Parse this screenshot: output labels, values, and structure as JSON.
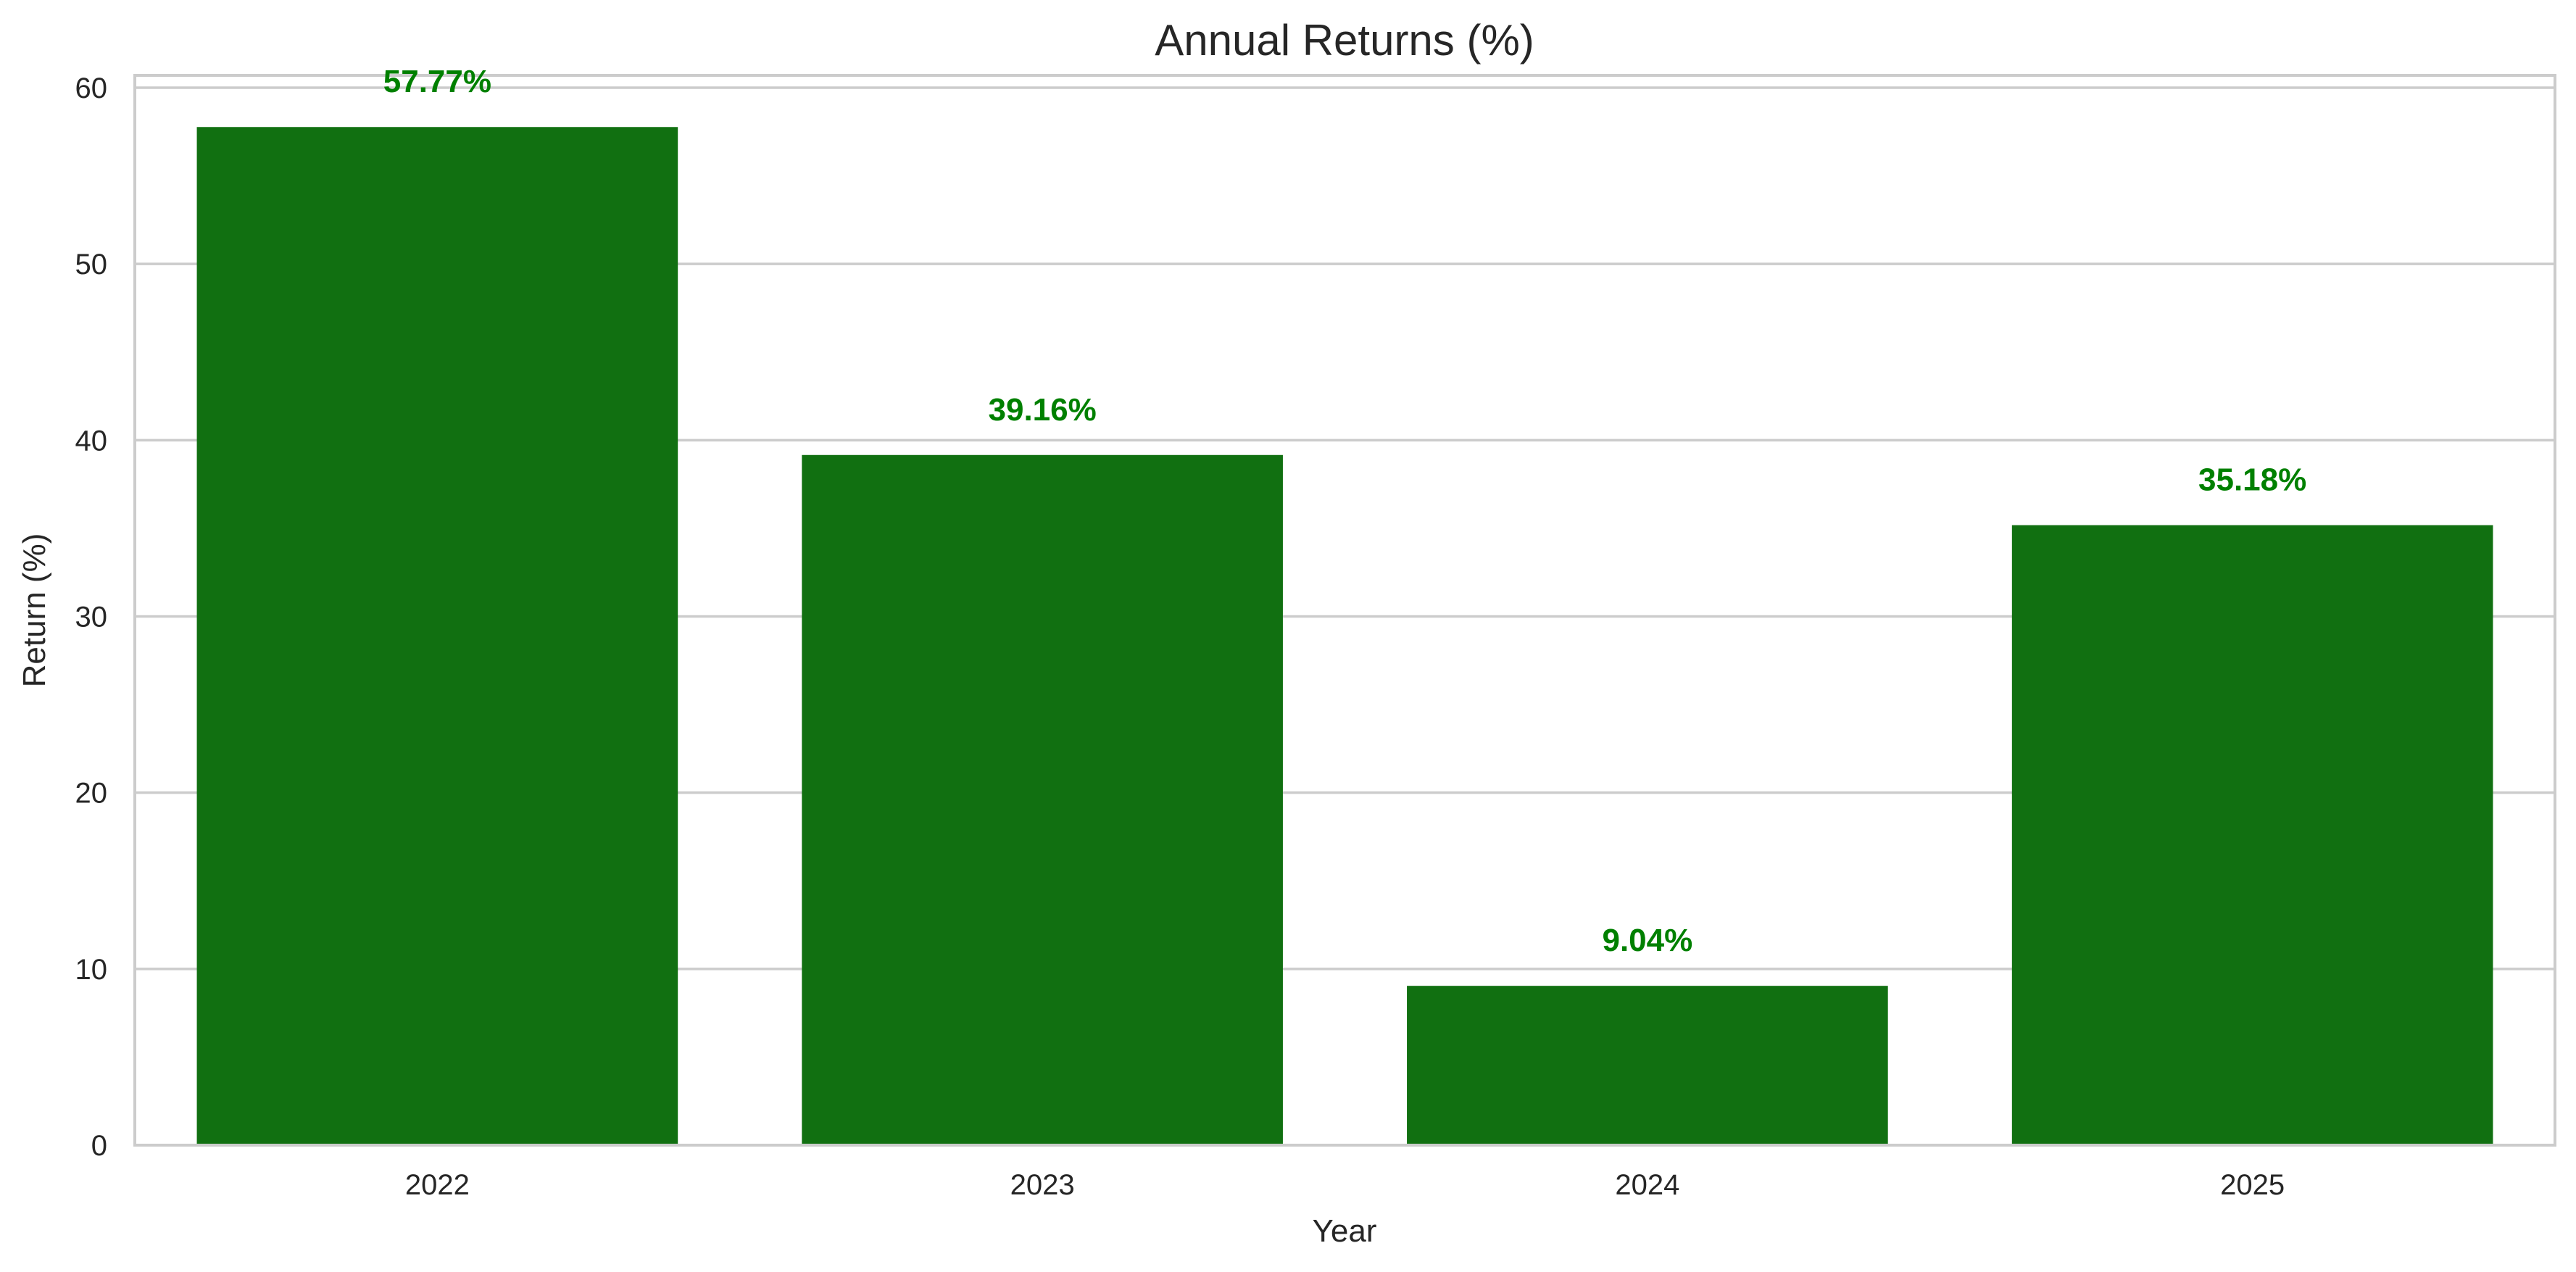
{
  "chart_data": {
    "type": "bar",
    "title": "Annual Returns (%)",
    "xlabel": "Year",
    "ylabel": "Return (%)",
    "categories": [
      "2022",
      "2023",
      "2024",
      "2025"
    ],
    "values": [
      57.77,
      39.16,
      9.04,
      35.18
    ],
    "data_labels": [
      "57.77%",
      "39.16%",
      "9.04%",
      "35.18%"
    ],
    "ylim": [
      0,
      60.7
    ],
    "yticks": [
      0,
      10,
      20,
      30,
      40,
      50,
      60
    ],
    "grid": "horizontal",
    "legend": "none",
    "colors": {
      "bar": "#117011",
      "data_label": "#008000",
      "grid": "#cccccc",
      "frame": "#cccccc",
      "text": "#262626"
    }
  }
}
